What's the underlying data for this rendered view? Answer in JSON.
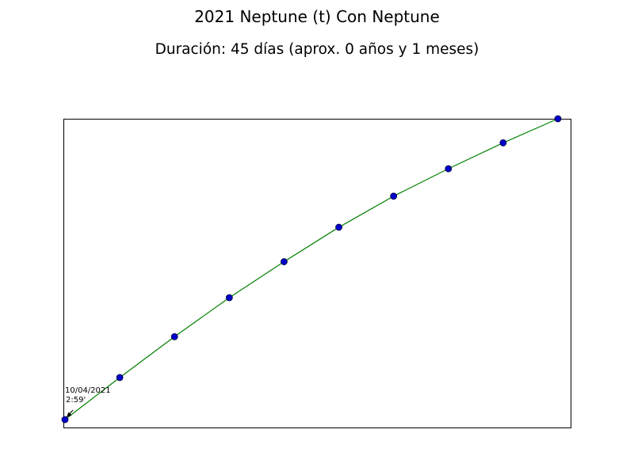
{
  "chart_data": {
    "type": "line",
    "title": "2021 Neptune (t) Con Neptune",
    "subtitle": "Duración: 45 días (aprox. 0 años y 1 meses)",
    "xlabel": "",
    "ylabel": "",
    "x_ticks_visible": false,
    "y_ticks_visible": false,
    "grid": false,
    "xlim": [
      0,
      45
    ],
    "ylim": [
      0,
      100
    ],
    "series": [
      {
        "line_color": "#008000",
        "marker_color": "#0000cc",
        "x": [
          0,
          5,
          10,
          15,
          20,
          25,
          30,
          35,
          40,
          45
        ],
        "y": [
          1.3,
          15.1,
          28.5,
          41.3,
          53.1,
          64.4,
          74.6,
          83.6,
          92.1,
          100
        ]
      }
    ],
    "annotations": [
      {
        "line1": "10/04/2021",
        "line2": "2:59'",
        "x": 0,
        "y": 1.3
      }
    ]
  }
}
